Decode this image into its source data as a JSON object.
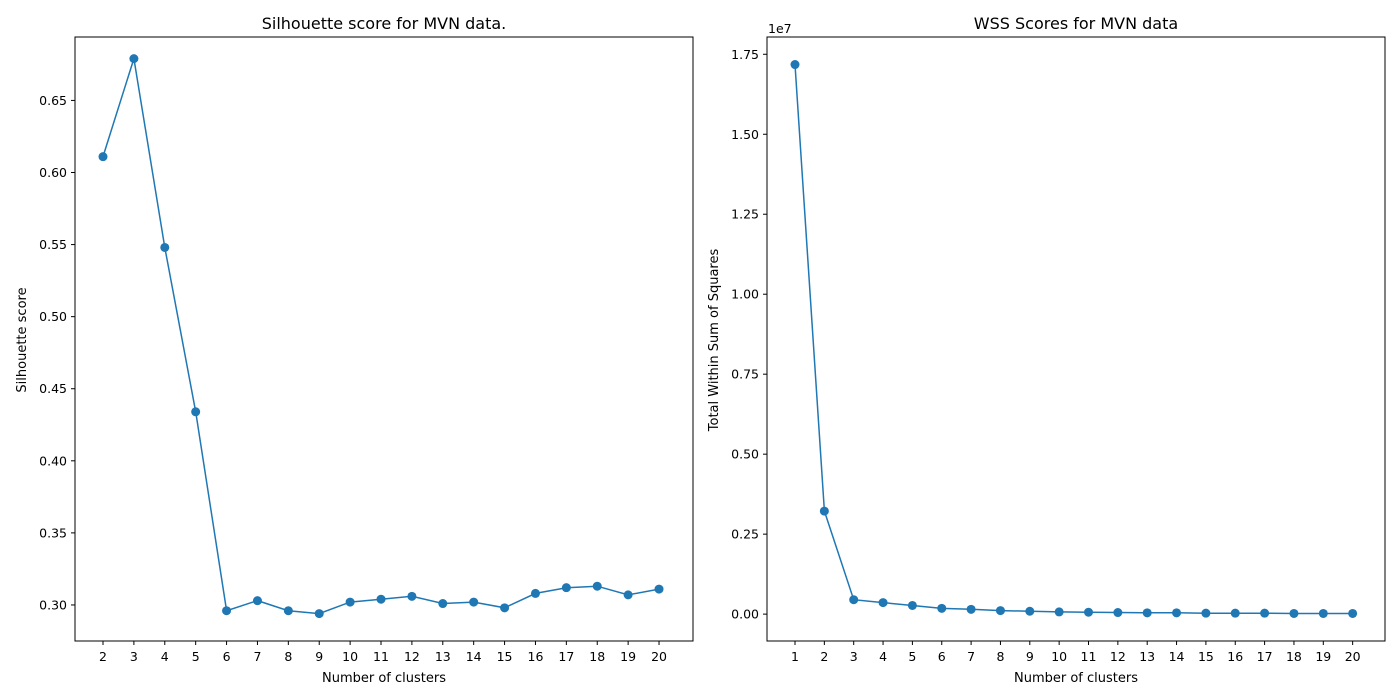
{
  "chart_data": [
    {
      "type": "line",
      "title": "Silhouette score for MVN data.",
      "xlabel": "Number of clusters",
      "ylabel": "Silhouette score",
      "x": [
        2,
        3,
        4,
        5,
        6,
        7,
        8,
        9,
        10,
        11,
        12,
        13,
        14,
        15,
        16,
        17,
        18,
        19,
        20
      ],
      "y": [
        0.611,
        0.679,
        0.548,
        0.434,
        0.296,
        0.303,
        0.296,
        0.294,
        0.302,
        0.304,
        0.306,
        0.301,
        0.302,
        0.298,
        0.308,
        0.312,
        0.313,
        0.307,
        0.311
      ],
      "xticks": [
        "2",
        "3",
        "4",
        "5",
        "6",
        "7",
        "8",
        "9",
        "10",
        "11",
        "12",
        "13",
        "14",
        "15",
        "16",
        "17",
        "18",
        "19",
        "20"
      ],
      "yticks": [
        "0.30",
        "0.35",
        "0.40",
        "0.45",
        "0.50",
        "0.55",
        "0.60",
        "0.65"
      ],
      "ylim": [
        0.275,
        0.694
      ],
      "color": "#1f77b4",
      "marker": "circle",
      "grid": false
    },
    {
      "type": "line",
      "title": "WSS Scores for MVN data",
      "xlabel": "Number of clusters",
      "ylabel": "Total Within Sum of Squares",
      "offset_label": "1e7",
      "x": [
        1,
        2,
        3,
        4,
        5,
        6,
        7,
        8,
        9,
        10,
        11,
        12,
        13,
        14,
        15,
        16,
        17,
        18,
        19,
        20
      ],
      "y": [
        1.718,
        0.322,
        0.045,
        0.036,
        0.027,
        0.018,
        0.015,
        0.011,
        0.009,
        0.007,
        0.006,
        0.005,
        0.004,
        0.004,
        0.003,
        0.003,
        0.003,
        0.002,
        0.002,
        0.002
      ],
      "xticks": [
        "1",
        "2",
        "3",
        "4",
        "5",
        "6",
        "7",
        "8",
        "9",
        "10",
        "11",
        "12",
        "13",
        "14",
        "15",
        "16",
        "17",
        "18",
        "19",
        "20"
      ],
      "yticks": [
        "0.00",
        "0.25",
        "0.50",
        "0.75",
        "1.00",
        "1.25",
        "1.50",
        "1.75"
      ],
      "ylim": [
        -0.084,
        1.804
      ],
      "color": "#1f77b4",
      "marker": "circle",
      "grid": false
    }
  ]
}
